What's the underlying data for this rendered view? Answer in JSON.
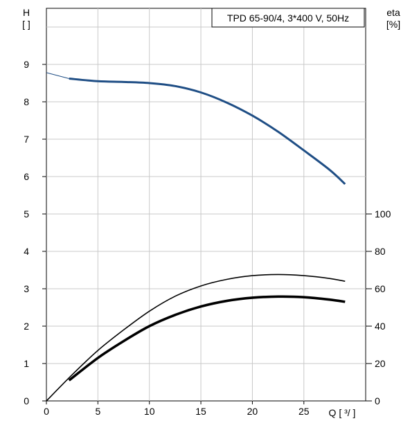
{
  "chart_data": {
    "type": "line",
    "title": "TPD 65-90/4, 3*400 V, 50Hz",
    "xlabel": "Q [ ³/ ]",
    "ylabel_left": "H",
    "ylabel_left_unit": "[ ]",
    "ylabel_right": "eta",
    "ylabel_right_unit": "[%]",
    "xlim": [
      0,
      31
    ],
    "ylim_left": [
      0,
      10.5
    ],
    "ylim_right": [
      0,
      210
    ],
    "x_ticks": [
      0,
      5,
      10,
      15,
      20,
      25
    ],
    "y_left_ticks": [
      0,
      1,
      2,
      3,
      4,
      5,
      6,
      7,
      8,
      9
    ],
    "y_right_ticks": [
      0,
      20,
      40,
      60,
      80,
      100
    ],
    "grid": true,
    "series": [
      {
        "name": "",
        "axis": "left",
        "color": "#1f4e85",
        "x": [
          0,
          2.2,
          5,
          7.5,
          10,
          12.5,
          15,
          17.5,
          20,
          22.5,
          25,
          27.5,
          29
        ],
        "values": [
          8.78,
          8.62,
          8.55,
          8.53,
          8.5,
          8.42,
          8.25,
          7.98,
          7.63,
          7.2,
          6.7,
          6.18,
          5.8
        ]
      },
      {
        "name": "",
        "axis": "right",
        "color": "#000000",
        "x": [
          0,
          2.5,
          5,
          7.5,
          10,
          12.5,
          15,
          17.5,
          20,
          22.5,
          25,
          27.5,
          29
        ],
        "values": [
          0,
          14,
          27,
          38,
          48,
          56,
          61.5,
          65,
          67,
          67.6,
          67,
          65.5,
          64
        ]
      },
      {
        "name": "",
        "axis": "right",
        "color": "#000000",
        "x": [
          2.2,
          5,
          7.5,
          10,
          12.5,
          15,
          17.5,
          20,
          22.5,
          25,
          27.5,
          29
        ],
        "values": [
          11,
          23,
          32,
          40,
          46,
          50.5,
          53.5,
          55.2,
          55.8,
          55.5,
          54.2,
          53
        ]
      }
    ]
  }
}
